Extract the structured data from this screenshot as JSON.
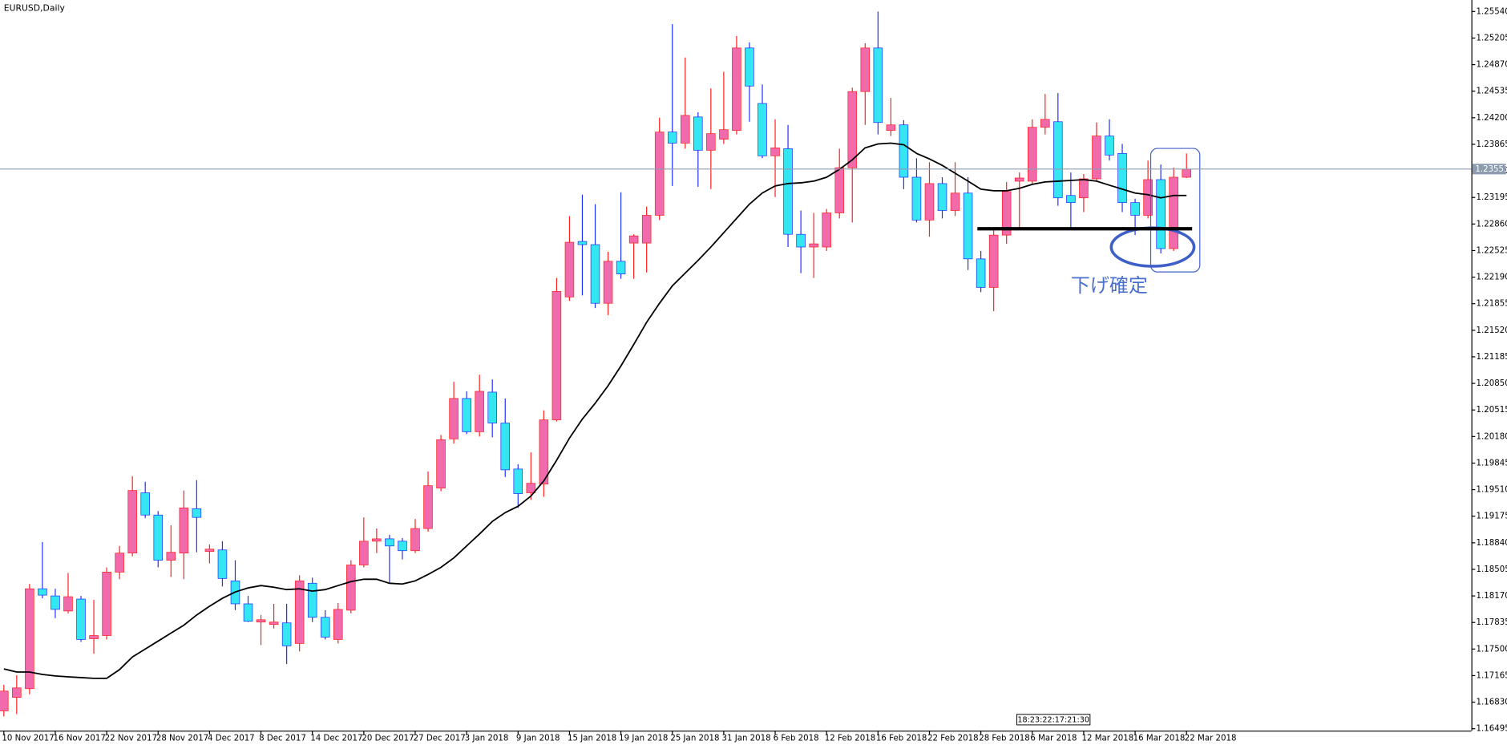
{
  "chart_data": {
    "type": "candlestick",
    "title": "EURUSD,Daily",
    "categories": [
      "10 Nov 2017",
      null,
      null,
      null,
      "16 Nov 2017",
      null,
      null,
      null,
      "22 Nov 2017",
      null,
      null,
      null,
      "28 Nov 2017",
      null,
      null,
      null,
      "4 Dec 2017",
      null,
      null,
      null,
      "8 Dec 2017",
      null,
      null,
      null,
      "14 Dec 2017",
      null,
      null,
      null,
      "20 Dec 2017",
      null,
      null,
      null,
      "27 Dec 2017",
      null,
      null,
      null,
      "3 Jan 2018",
      null,
      null,
      null,
      "9 Jan 2018",
      null,
      null,
      null,
      "15 Jan 2018",
      null,
      null,
      null,
      "19 Jan 2018",
      null,
      null,
      null,
      "25 Jan 2018",
      null,
      null,
      null,
      "31 Jan 2018",
      null,
      null,
      null,
      "6 Feb 2018",
      null,
      null,
      null,
      "12 Feb 2018",
      null,
      null,
      null,
      "16 Feb 2018",
      null,
      null,
      null,
      "22 Feb 2018",
      null,
      null,
      null,
      "28 Feb 2018",
      null,
      null,
      null,
      "6 Mar 2018",
      null,
      null,
      null,
      "12 Mar 2018",
      null,
      null,
      null,
      "16 Mar 2018",
      null,
      null,
      null,
      "22 Mar 2018"
    ],
    "open": [
      1.1672,
      1.1689,
      1.17,
      1.1826,
      1.1817,
      1.1798,
      1.1813,
      1.1763,
      1.1767,
      1.1847,
      1.1871,
      1.1947,
      1.1919,
      1.1862,
      1.1871,
      1.1927,
      1.1873,
      1.1875,
      1.1836,
      1.1807,
      1.1784,
      1.1781,
      1.1783,
      1.1757,
      1.1833,
      1.179,
      1.1762,
      1.1799,
      1.1856,
      1.1886,
      1.1889,
      1.1886,
      1.1874,
      1.1902,
      1.1953,
      1.2015,
      1.2066,
      1.2024,
      1.2074,
      1.2035,
      1.1977,
      1.1947,
      1.1958,
      1.2039,
      1.2194,
      1.2264,
      1.226,
      1.2186,
      1.2239,
      1.2262,
      1.2262,
      1.2297,
      1.2402,
      1.2388,
      1.2421,
      1.2379,
      1.2393,
      1.2404,
      1.2508,
      1.2438,
      1.2372,
      1.2381,
      1.2273,
      1.2257,
      1.2257,
      1.23,
      1.2357,
      1.2453,
      1.2508,
      1.2404,
      1.2411,
      1.2345,
      1.2291,
      1.2337,
      1.2303,
      1.2325,
      1.2242,
      1.2206,
      1.2272,
      1.234,
      1.234,
      1.2408,
      1.2415,
      1.2322,
      1.2319,
      1.2343,
      1.2397,
      1.2375,
      1.2313,
      1.2297,
      1.2342,
      1.2255,
      1.2345
    ],
    "high": [
      1.1705,
      1.1717,
      1.1832,
      1.1885,
      1.1826,
      1.1846,
      1.1817,
      1.1812,
      1.1853,
      1.188,
      1.1968,
      1.1961,
      1.1924,
      1.1906,
      1.195,
      1.1963,
      1.1882,
      1.1886,
      1.1862,
      1.1817,
      1.1793,
      1.1807,
      1.1807,
      1.1843,
      1.184,
      1.1799,
      1.1808,
      1.1862,
      1.1916,
      1.1902,
      1.1894,
      1.189,
      1.1914,
      1.1974,
      1.202,
      1.2087,
      1.2075,
      1.2096,
      1.209,
      1.2066,
      1.1983,
      1.1998,
      1.2051,
      1.2218,
      1.2296,
      1.2323,
      1.2311,
      1.2251,
      1.2326,
      1.2273,
      1.2308,
      1.242,
      1.2538,
      1.2496,
      1.2427,
      1.2457,
      1.2478,
      1.2523,
      1.2515,
      1.2462,
      1.2418,
      1.2411,
      1.2303,
      1.23,
      1.2305,
      1.2381,
      1.2458,
      1.2514,
      1.2554,
      1.2445,
      1.2417,
      1.2369,
      1.2364,
      1.2345,
      1.2364,
      1.2345,
      1.2252,
      1.2281,
      1.2339,
      1.2351,
      1.2418,
      1.245,
      1.2451,
      1.2351,
      1.2349,
      1.2414,
      1.2418,
      1.2387,
      1.2318,
      1.2366,
      1.2361,
      1.2357,
      1.2375
    ],
    "low": [
      1.1665,
      1.1668,
      1.1693,
      1.1814,
      1.1789,
      1.1795,
      1.1759,
      1.1744,
      1.1762,
      1.1838,
      1.1867,
      1.1915,
      1.1853,
      1.1841,
      1.1838,
      1.1872,
      1.1858,
      1.1829,
      1.1799,
      1.1784,
      1.1755,
      1.1776,
      1.1731,
      1.1747,
      1.1784,
      1.1762,
      1.1757,
      1.1795,
      1.1853,
      1.1871,
      1.1834,
      1.1863,
      1.1871,
      1.1898,
      1.1949,
      1.2009,
      1.2021,
      1.2018,
      1.2017,
      1.1967,
      1.1928,
      1.1938,
      1.1942,
      1.2037,
      1.2189,
      1.2196,
      1.218,
      1.2171,
      1.2217,
      1.2217,
      1.2225,
      1.2291,
      1.2334,
      1.2381,
      1.2333,
      1.233,
      1.2387,
      1.2399,
      1.2415,
      1.2369,
      1.232,
      1.2257,
      1.2224,
      1.2218,
      1.2252,
      1.2293,
      1.2288,
      1.2411,
      1.2399,
      1.2397,
      1.233,
      1.2288,
      1.227,
      1.2293,
      1.2296,
      1.2228,
      1.22,
      1.2176,
      1.2261,
      1.2279,
      1.2336,
      1.2399,
      1.2309,
      1.2281,
      1.2301,
      1.2339,
      1.2366,
      1.2301,
      1.2272,
      1.2293,
      1.2249,
      1.2252,
      1.2344
    ],
    "close": [
      1.1697,
      1.1701,
      1.1826,
      1.1818,
      1.18,
      1.1816,
      1.1762,
      1.1767,
      1.1847,
      1.1871,
      1.195,
      1.1919,
      1.1862,
      1.1872,
      1.1928,
      1.1916,
      1.1876,
      1.1839,
      1.1807,
      1.1785,
      1.1787,
      1.1784,
      1.1754,
      1.1836,
      1.179,
      1.1765,
      1.18,
      1.1856,
      1.1886,
      1.1889,
      1.188,
      1.1874,
      1.1902,
      1.1956,
      1.2014,
      1.2066,
      1.2024,
      1.2075,
      1.2035,
      1.1976,
      1.1946,
      1.1959,
      1.2039,
      1.2201,
      1.2263,
      1.226,
      1.2186,
      1.2239,
      1.2223,
      1.2271,
      1.2297,
      1.2402,
      1.2388,
      1.2423,
      1.2379,
      1.24,
      1.2405,
      1.2508,
      1.246,
      1.2372,
      1.2382,
      1.2273,
      1.2257,
      1.2261,
      1.23,
      1.2357,
      1.2453,
      1.2508,
      1.2414,
      1.2411,
      1.2345,
      1.2291,
      1.2337,
      1.2303,
      1.2325,
      1.2242,
      1.2206,
      1.2272,
      1.2327,
      1.2344,
      1.2408,
      1.2418,
      1.2319,
      1.2313,
      1.2343,
      1.2397,
      1.2373,
      1.2313,
      1.2297,
      1.2342,
      1.2255,
      1.2345,
      1.2355
    ],
    "up_color": "#f06aac",
    "up_wick": "#ff2020",
    "down_color": "#33e6f2",
    "down_wick": "#2030ff",
    "moving_average": {
      "color": "#000000",
      "values": [
        1.1725,
        1.1721,
        1.1721,
        1.1718,
        1.1716,
        1.1715,
        1.1714,
        1.1713,
        1.1713,
        1.1724,
        1.174,
        1.175,
        1.176,
        1.177,
        1.178,
        1.1793,
        1.1804,
        1.1814,
        1.1822,
        1.1827,
        1.183,
        1.1828,
        1.1825,
        1.1826,
        1.1823,
        1.1825,
        1.183,
        1.1835,
        1.1838,
        1.1838,
        1.1833,
        1.1832,
        1.1836,
        1.1844,
        1.1853,
        1.1865,
        1.188,
        1.1895,
        1.1911,
        1.1922,
        1.193,
        1.1943,
        1.1962,
        1.1988,
        1.2016,
        1.204,
        1.206,
        1.2082,
        1.2107,
        1.2134,
        1.2162,
        1.2186,
        1.2208,
        1.2224,
        1.224,
        1.2257,
        1.2275,
        1.2293,
        1.2311,
        1.2325,
        1.2334,
        1.2337,
        1.2338,
        1.234,
        1.2345,
        1.2355,
        1.2367,
        1.2382,
        1.2387,
        1.2388,
        1.2386,
        1.2375,
        1.2368,
        1.236,
        1.235,
        1.234,
        1.233,
        1.2328,
        1.2328,
        1.2331,
        1.2336,
        1.2339,
        1.234,
        1.2341,
        1.2342,
        1.234,
        1.2335,
        1.233,
        1.2325,
        1.2323,
        1.2319,
        1.2322,
        1.2322
      ]
    },
    "ylim": [
      1.16471,
      1.25685
    ],
    "yticks": [
      {
        "value": 1.16495,
        "label": "1.16495"
      },
      {
        "value": 1.1683,
        "label": "1.16830"
      },
      {
        "value": 1.17165,
        "label": "1.17165"
      },
      {
        "value": 1.175,
        "label": "1.17500"
      },
      {
        "value": 1.17835,
        "label": "1.17835"
      },
      {
        "value": 1.1817,
        "label": "1.18170"
      },
      {
        "value": 1.18505,
        "label": "1.18505"
      },
      {
        "value": 1.1884,
        "label": "1.18840"
      },
      {
        "value": 1.19175,
        "label": "1.19175"
      },
      {
        "value": 1.1951,
        "label": "1.19510"
      },
      {
        "value": 1.19845,
        "label": "1.19845"
      },
      {
        "value": 1.2018,
        "label": "1.20180"
      },
      {
        "value": 1.20515,
        "label": "1.20515"
      },
      {
        "value": 1.2085,
        "label": "1.20850"
      },
      {
        "value": 1.21185,
        "label": "1.21185"
      },
      {
        "value": 1.2152,
        "label": "1.21520"
      },
      {
        "value": 1.21855,
        "label": "1.21855"
      },
      {
        "value": 1.2219,
        "label": "1.22190"
      },
      {
        "value": 1.22525,
        "label": "1.22525"
      },
      {
        "value": 1.2286,
        "label": "1.22860"
      },
      {
        "value": 1.23195,
        "label": "1.23195"
      },
      {
        "value": 1.2353,
        "label": "1.23530"
      },
      {
        "value": 1.23865,
        "label": "1.23865"
      },
      {
        "value": 1.242,
        "label": "1.24200"
      },
      {
        "value": 1.24535,
        "label": "1.24535"
      },
      {
        "value": 1.2487,
        "label": "1.24870"
      },
      {
        "value": 1.25205,
        "label": "1.25205"
      },
      {
        "value": 1.2554,
        "label": "1.25540"
      }
    ],
    "current_price": {
      "value": 1.23553,
      "label": "1.23553"
    },
    "support_line": 1.228,
    "annotation": "下げ確定",
    "countdown": "18:23:22:17:21:30"
  }
}
